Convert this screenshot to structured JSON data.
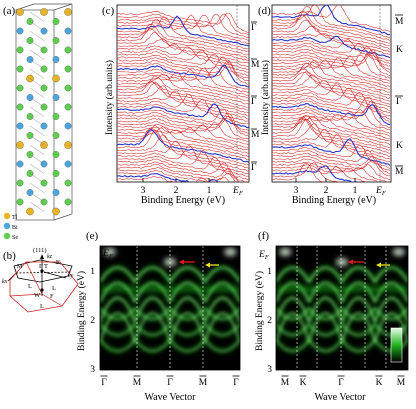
{
  "panels": {
    "a": {
      "label": "(a)",
      "legend": [
        {
          "text": "Tl",
          "color": "#e8b423"
        },
        {
          "text": "Bi",
          "color": "#4aa7e0"
        },
        {
          "text": "Se",
          "color": "#5fcf4f"
        }
      ]
    },
    "b": {
      "label": "(b)",
      "direction": "(111)",
      "points": [
        "Γ",
        "T",
        "L",
        "W",
        "L",
        "L",
        "F",
        "M",
        "K"
      ],
      "axes": [
        "kx",
        "ky",
        "kz"
      ]
    },
    "c": {
      "label": "(c)",
      "ylabel": "Intensity (arb.units)",
      "xlabel": "Binding Energy (eV)",
      "xticks": [
        "3",
        "2",
        "1"
      ],
      "ef_label": "E",
      "ef_sub": "F",
      "right_labels": [
        "Γ",
        "M",
        "Γ",
        "M",
        "Γ"
      ]
    },
    "d": {
      "label": "(d)",
      "ylabel": "Intensity (arb.units)",
      "xlabel": "Binding Energy (eV)",
      "xticks": [
        "3",
        "2",
        "1"
      ],
      "ef_label": "E",
      "ef_sub": "F",
      "right_labels": [
        "M",
        "K",
        "Γ",
        "K",
        "M"
      ]
    },
    "e": {
      "label": "(e)",
      "ylabel": "Binding Energy (eV)",
      "xlabel": "Wave Vector",
      "yticks": [
        "1",
        "2",
        "3"
      ],
      "ef_label": "E",
      "ef_sub": "F",
      "kpoints": [
        "Γ",
        "M",
        "Γ",
        "M",
        "Γ"
      ]
    },
    "f": {
      "label": "(f)",
      "ylabel": "Binding Energy (eV)",
      "xlabel": "Wave Vector",
      "yticks": [
        "1",
        "2",
        "3"
      ],
      "ef_label": "E",
      "ef_sub": "F",
      "kpoints": [
        "M",
        "K",
        "Γ",
        "K",
        "M"
      ],
      "colorbar_high": "high",
      "colorbar_low": "low"
    }
  },
  "colors": {
    "edc_red": "#d42a2a",
    "edc_blue": "#2a36c8",
    "arpes_green": "#1fe01f",
    "arrow_red": "#e41a1a",
    "arrow_yellow": "#f0e01a"
  }
}
